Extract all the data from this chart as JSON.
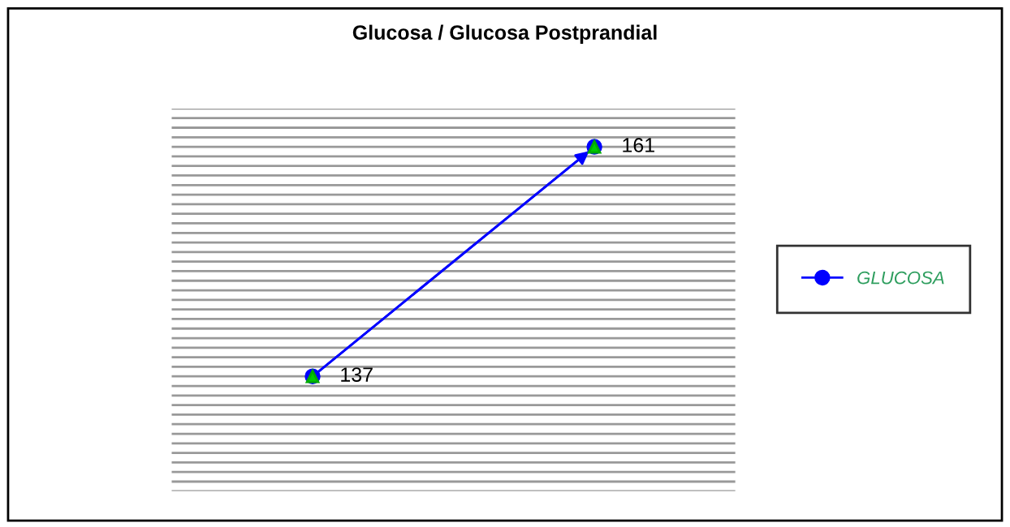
{
  "chart_data": {
    "type": "line",
    "title": "Glucosa / Glucosa Postprandial",
    "categories": [
      null,
      null
    ],
    "series": [
      {
        "name": "GLUCOSA",
        "color": "#0000ff",
        "values": [
          137,
          161
        ]
      }
    ],
    "ylim": [
      125,
      165
    ],
    "yticks": [
      {
        "value": 125,
        "label": null
      },
      {
        "value": 126,
        "label": null
      },
      {
        "value": 127,
        "label": null
      },
      {
        "value": 128,
        "label": null
      },
      {
        "value": 129,
        "label": null
      },
      {
        "value": 130,
        "label": null
      },
      {
        "value": 131,
        "label": null
      },
      {
        "value": 132,
        "label": null
      },
      {
        "value": 133,
        "label": null
      },
      {
        "value": 134,
        "label": null
      },
      {
        "value": 135,
        "label": null
      },
      {
        "value": 136,
        "label": null
      },
      {
        "value": 137,
        "label": null
      },
      {
        "value": 138,
        "label": null
      },
      {
        "value": 139,
        "label": null
      },
      {
        "value": 140,
        "label": null
      },
      {
        "value": 141,
        "label": null
      },
      {
        "value": 142,
        "label": null
      },
      {
        "value": 143,
        "label": null
      },
      {
        "value": 144,
        "label": null
      },
      {
        "value": 145,
        "label": null
      },
      {
        "value": 146,
        "label": null
      },
      {
        "value": 147,
        "label": null
      },
      {
        "value": 148,
        "label": null
      },
      {
        "value": 149,
        "label": null
      },
      {
        "value": 150,
        "label": null
      },
      {
        "value": 151,
        "label": null
      },
      {
        "value": 152,
        "label": null
      },
      {
        "value": 153,
        "label": null
      },
      {
        "value": 154,
        "label": null
      },
      {
        "value": 155,
        "label": null
      },
      {
        "value": 156,
        "label": null
      },
      {
        "value": 157,
        "label": null
      },
      {
        "value": 158,
        "label": null
      },
      {
        "value": 159,
        "label": null
      },
      {
        "value": 160,
        "label": null
      },
      {
        "value": 161,
        "label": null
      },
      {
        "value": 162,
        "label": null
      },
      {
        "value": 163,
        "label": null
      },
      {
        "value": 164,
        "label": null
      },
      {
        "value": 165,
        "label": null
      }
    ],
    "grid": "y",
    "data_labels": true,
    "legend": "right",
    "marker": "circle",
    "line_style": "solid"
  }
}
